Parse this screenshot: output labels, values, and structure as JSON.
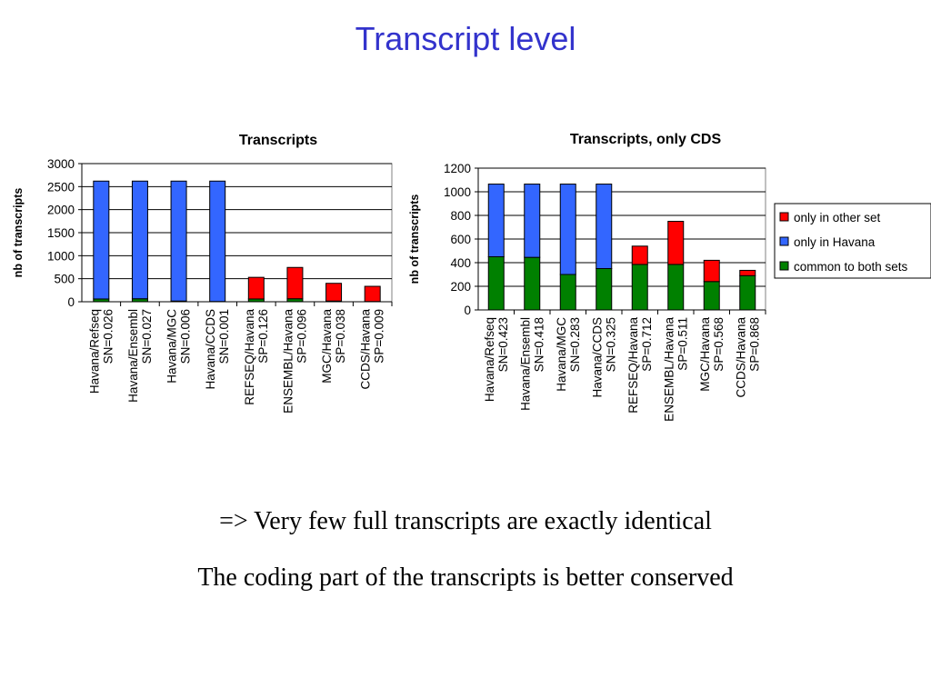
{
  "slide": {
    "title": "Transcript level",
    "notes": [
      "=> Very few full transcripts are exactly identical",
      "The coding part of the transcripts is better conserved"
    ]
  },
  "colors": {
    "title": "#3333cc",
    "only_in_other_set": "#ff0000",
    "only_in_havana": "#3366ff",
    "common_to_both_sets": "#008000"
  },
  "chart_data": [
    {
      "type": "bar",
      "stacked": true,
      "title": "Transcripts",
      "ylabel": "nb of transcripts",
      "xlabel": "",
      "ylim": [
        0,
        3000
      ],
      "yticks": [
        "0",
        "500",
        "1000",
        "1500",
        "2000",
        "2500",
        "3000"
      ],
      "categories": [
        [
          "Havana/Refseq",
          "SN=0.026"
        ],
        [
          "Havana/Ensembl",
          "SN=0.027"
        ],
        [
          "Havana/MGC",
          "SN=0.006"
        ],
        [
          "Havana/CCDS",
          "SN=0.001"
        ],
        [
          "REFSEQ/Havana",
          "SP=0.126"
        ],
        [
          "ENSEMBL/Havana",
          "SP=0.096"
        ],
        [
          "MGC/Havana",
          "SP=0.038"
        ],
        [
          "CCDS/Havana",
          "SP=0.009"
        ]
      ],
      "series": [
        {
          "key": "common_to_both_sets",
          "values": [
            60,
            65,
            15,
            5,
            60,
            65,
            15,
            5
          ]
        },
        {
          "key": "only_in_havana",
          "values": [
            2560,
            2555,
            2605,
            2615,
            0,
            0,
            0,
            0
          ]
        },
        {
          "key": "only_in_other_set",
          "values": [
            0,
            0,
            0,
            0,
            470,
            680,
            385,
            330
          ]
        }
      ],
      "grid": true,
      "legend": "none"
    },
    {
      "type": "bar",
      "stacked": true,
      "title": "Transcripts, only CDS",
      "ylabel": "nb of transcripts",
      "xlabel": "",
      "ylim": [
        0,
        1200
      ],
      "yticks": [
        "0",
        "200",
        "400",
        "600",
        "800",
        "1000",
        "1200"
      ],
      "categories": [
        [
          "Havana/Refseq",
          "SN=0.423"
        ],
        [
          "Havana/Ensembl",
          "SN=0.418"
        ],
        [
          "Havana/MGC",
          "SN=0.283"
        ],
        [
          "Havana/CCDS",
          "SN=0.325"
        ],
        [
          "REFSEQ/Havana",
          "SP=0.712"
        ],
        [
          "ENSEMBL/Havana",
          "SP=0.511"
        ],
        [
          "MGC/Havana",
          "SP=0.568"
        ],
        [
          "CCDS/Havana",
          "SP=0.868"
        ]
      ],
      "series": [
        {
          "key": "common_to_both_sets",
          "name": "common to both sets",
          "values": [
            450,
            445,
            300,
            350,
            385,
            385,
            240,
            290
          ]
        },
        {
          "key": "only_in_havana",
          "name": "only in Havana",
          "values": [
            615,
            620,
            765,
            715,
            0,
            0,
            0,
            0
          ]
        },
        {
          "key": "only_in_other_set",
          "name": "only in other set",
          "values": [
            0,
            0,
            0,
            0,
            155,
            365,
            180,
            45
          ]
        }
      ],
      "grid": true,
      "legend": "right",
      "legend_order": [
        "only_in_other_set",
        "only_in_havana",
        "common_to_both_sets"
      ]
    }
  ]
}
